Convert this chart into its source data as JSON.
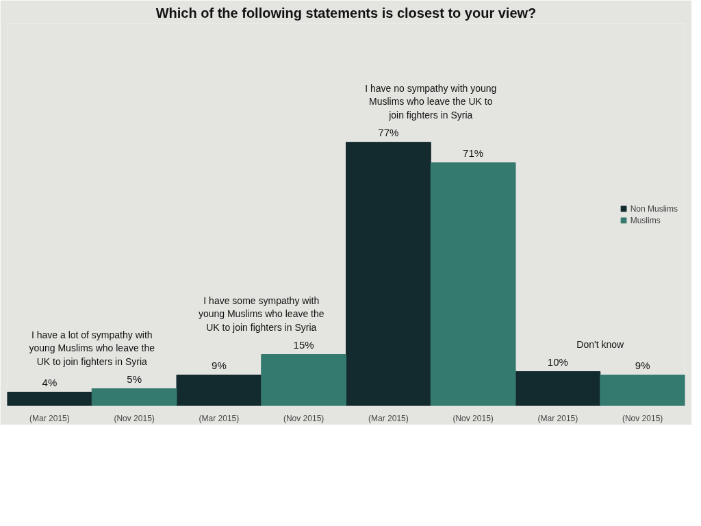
{
  "chart_data": {
    "type": "bar",
    "title": "Which of the following statements is closest to your view?",
    "categories": [
      "(Mar 2015)",
      "(Nov 2015)",
      "(Mar 2015)",
      "(Nov 2015)",
      "(Mar 2015)",
      "(Nov 2015)",
      "(Mar 2015)",
      "(Nov 2015)"
    ],
    "series": [
      {
        "name": "Non Muslims",
        "color": "#132a2e",
        "values": [
          4,
          null,
          9,
          null,
          77,
          null,
          10,
          null
        ],
        "value_labels": [
          "4%",
          null,
          "9%",
          null,
          "77%",
          null,
          "10%",
          null
        ]
      },
      {
        "name": "Muslims",
        "color": "#357a6f",
        "values": [
          null,
          5,
          null,
          15,
          null,
          71,
          null,
          9
        ],
        "value_labels": [
          null,
          "5%",
          null,
          "15%",
          null,
          "71%",
          null,
          "9%"
        ]
      }
    ],
    "annotations": [
      "I have a lot of sympathy with young Muslims who leave the UK to join fighters in Syria",
      "I have some sympathy with young Muslims who leave the UK to join fighters in Syria",
      "I have no sympathy with young Muslims who leave the UK to join fighters in Syria",
      "Don't know"
    ],
    "legend": "right",
    "tick_labels": "x"
  }
}
